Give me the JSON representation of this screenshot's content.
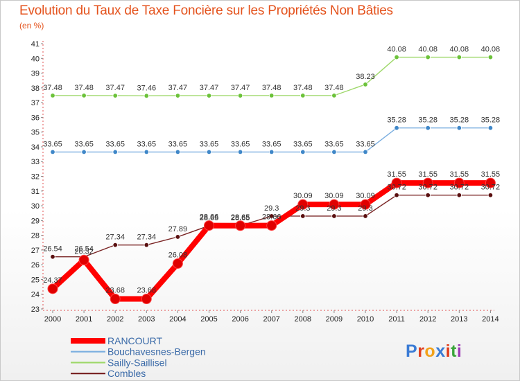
{
  "title": "Evolution du Taux de Taxe Foncière sur les Propriétés Non Bâties",
  "subtitle": "(en %)",
  "logo": {
    "text": "Proxiti",
    "colors": [
      "#3a7bd5",
      "#e04020",
      "#f2a21b",
      "#3a7bd5",
      "#e03a1a",
      "#3aa53a",
      "#9c3ab5"
    ]
  },
  "chart_data": {
    "type": "line",
    "title": "Evolution du Taux de Taxe Foncière sur les Propriétés Non Bâties",
    "ylabel": "(en %)",
    "xlabel": "",
    "ylim": [
      23,
      41
    ],
    "yticks": [
      23,
      24,
      25,
      26,
      27,
      28,
      29,
      30,
      31,
      32,
      33,
      34,
      35,
      36,
      37,
      38,
      39,
      40,
      41
    ],
    "x": [
      2000,
      2001,
      2002,
      2003,
      2004,
      2005,
      2006,
      2007,
      2008,
      2009,
      2010,
      2011,
      2012,
      2013,
      2014
    ],
    "grid": false,
    "legend_placement": "bottom-left",
    "series": [
      {
        "name": "Sailly-Saillisel",
        "color": "#9ed86a",
        "marker": "#6cc23a",
        "values": [
          37.48,
          37.48,
          37.47,
          37.46,
          37.47,
          37.47,
          37.47,
          37.48,
          37.48,
          37.48,
          38.23,
          40.08,
          40.08,
          40.08,
          40.08
        ],
        "labels": [
          "37.48",
          "37.48",
          "37.47",
          "37.46",
          "37.47",
          "37.47",
          "37.47",
          "37.48",
          "37.48",
          "37.48",
          "38.23",
          "40.08",
          "40.08",
          "40.08",
          "40.08"
        ]
      },
      {
        "name": "Bouchavesnes-Bergen",
        "color": "#7aaee0",
        "marker": "#3f87c8",
        "values": [
          33.65,
          33.65,
          33.65,
          33.65,
          33.65,
          33.65,
          33.65,
          33.65,
          33.65,
          33.65,
          33.65,
          35.28,
          35.28,
          35.28,
          35.28
        ],
        "labels": [
          "33.65",
          "33.65",
          "33.65",
          "33.65",
          "33.65",
          "33.65",
          "33.65",
          "33.65",
          "33.65",
          "33.65",
          "33.65",
          "35.28",
          "35.28",
          "35.28",
          "35.28"
        ]
      },
      {
        "name": "Combles",
        "color": "#7a2424",
        "marker": "#5a1010",
        "values": [
          26.54,
          26.54,
          27.34,
          27.34,
          27.89,
          28.65,
          28.65,
          29.3,
          29.3,
          29.3,
          29.3,
          30.72,
          30.72,
          30.72,
          30.72
        ],
        "labels": [
          "26.54",
          "26.54",
          "27.34",
          "27.34",
          "27.89",
          "28.65",
          "28.65",
          "29.3",
          "29.3",
          "29.3",
          "29.3",
          "30.72",
          "30.72",
          "30.72",
          "30.72"
        ]
      },
      {
        "name": "RANCOURT",
        "color": "#ff0000",
        "marker": "#e00000",
        "values": [
          24.37,
          26.32,
          23.68,
          23.68,
          26.08,
          28.66,
          28.65,
          28.66,
          30.09,
          30.09,
          30.09,
          31.55,
          31.55,
          31.55,
          31.55
        ],
        "labels": [
          "24.37",
          "26.32",
          "23.68",
          "23.68",
          "26.08",
          "28.66",
          "28.65",
          "28.66",
          "30.09",
          "30.09",
          "30.09",
          "31.55",
          "31.55",
          "31.55",
          "31.55"
        ]
      }
    ],
    "legend_order": [
      "RANCOURT",
      "Bouchavesnes-Bergen",
      "Sailly-Saillisel",
      "Combles"
    ]
  }
}
